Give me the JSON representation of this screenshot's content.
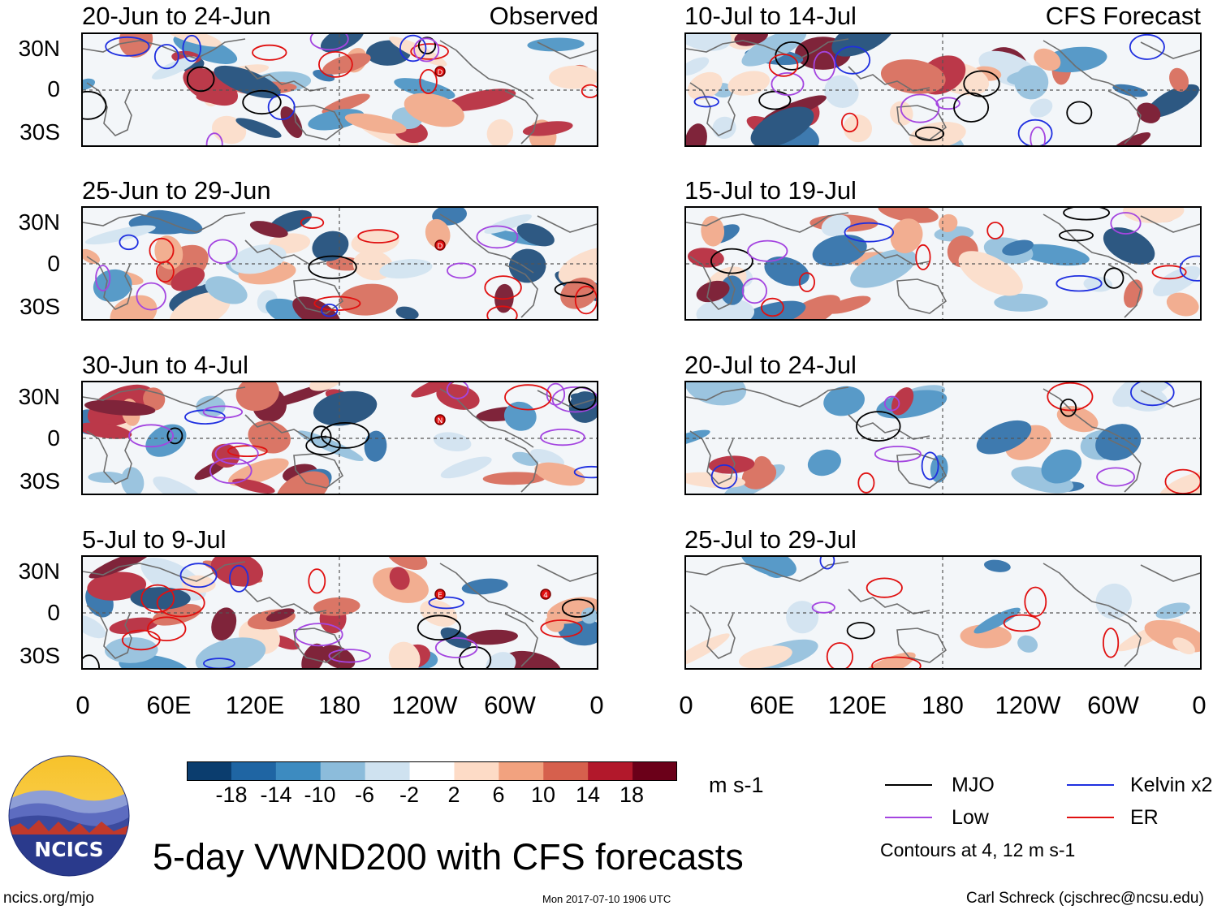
{
  "figure": {
    "title": "5-day VWND200 with CFS forecasts",
    "units": "m s-1",
    "contours_note": "Contours at 4, 12 m s-1",
    "url": "ncics.org/mjo",
    "timestamp": "Mon 2017-07-10 1906 UTC",
    "author": "Carl Schreck (cjschrec@ncsu.edu)",
    "logo_text": "NCICS"
  },
  "columns": {
    "left_tag": "Observed",
    "right_tag": "CFS Forecast"
  },
  "panels": {
    "observed": [
      {
        "dates": "20-Jun to 24-Jun"
      },
      {
        "dates": "25-Jun to 29-Jun"
      },
      {
        "dates": "30-Jun to 4-Jul"
      },
      {
        "dates": "5-Jul to 9-Jul"
      }
    ],
    "forecast": [
      {
        "dates": "10-Jul to 14-Jul"
      },
      {
        "dates": "15-Jul to 19-Jul"
      },
      {
        "dates": "20-Jul to 24-Jul"
      },
      {
        "dates": "25-Jul to 29-Jul"
      }
    ]
  },
  "axes": {
    "lat_labels": [
      "30N",
      "0",
      "30S"
    ],
    "lon_labels": [
      "0",
      "60E",
      "120E",
      "180",
      "120W",
      "60W",
      "0"
    ]
  },
  "colorbar": {
    "labels": [
      "-18",
      "-14",
      "-10",
      "-6",
      "-2",
      "2",
      "6",
      "10",
      "14",
      "18"
    ],
    "colors": [
      "#0b3d6e",
      "#1f65a3",
      "#3d8bc0",
      "#8cbcdb",
      "#cfe2f0",
      "#ffffff",
      "#fddbc6",
      "#f2a27f",
      "#d6604d",
      "#b2182b",
      "#6b0019"
    ]
  },
  "legend": {
    "items": [
      {
        "label": "MJO",
        "color": "#000000"
      },
      {
        "label": "Kelvin x2",
        "color": "#1f2fe0"
      },
      {
        "label": "Low",
        "color": "#a445e0"
      },
      {
        "label": "ER",
        "color": "#e01010"
      }
    ]
  },
  "storms": {
    "observed": [
      [
        {
          "label": "D"
        }
      ],
      [
        {
          "label": "D"
        }
      ],
      [
        {
          "label": "N"
        }
      ],
      [
        {
          "label": "E"
        },
        {
          "label": "4"
        }
      ]
    ]
  }
}
